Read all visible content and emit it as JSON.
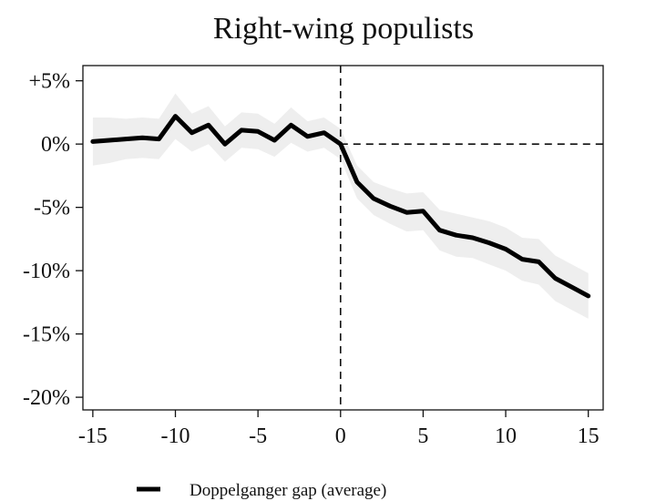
{
  "chart_data": {
    "type": "line",
    "title": "Right-wing populists",
    "xlabel": "",
    "ylabel": "",
    "xlim": [
      -15.6,
      15.9
    ],
    "ylim": [
      -21.0,
      6.2
    ],
    "x_ticks": [
      -15,
      -10,
      -5,
      0,
      5,
      10,
      15
    ],
    "x_tick_labels": [
      "-15",
      "-10",
      "-5",
      "0",
      "5",
      "10",
      "15"
    ],
    "y_ticks": [
      5,
      0,
      -5,
      -10,
      -15,
      -20
    ],
    "y_tick_labels": [
      "+5%",
      "0%",
      "-5%",
      "-10%",
      "-15%",
      "-20%"
    ],
    "reference_lines": {
      "x": 0,
      "y": 0,
      "style": "dashed"
    },
    "grid": false,
    "legend_position": "bottom-center",
    "series": [
      {
        "name": "Doppelganger gap (average)",
        "color": "#000000",
        "x": [
          -15,
          -14,
          -13,
          -12,
          -11,
          -10,
          -9,
          -8,
          -7,
          -6,
          -5,
          -4,
          -3,
          -2,
          -1,
          0,
          1,
          2,
          3,
          4,
          5,
          6,
          7,
          8,
          9,
          10,
          11,
          12,
          13,
          14,
          15
        ],
        "y": [
          0.2,
          0.3,
          0.4,
          0.5,
          0.4,
          2.2,
          0.9,
          1.5,
          0.0,
          1.1,
          1.0,
          0.3,
          1.5,
          0.6,
          0.9,
          0.0,
          -3.0,
          -4.3,
          -4.9,
          -5.4,
          -5.3,
          -6.8,
          -7.2,
          -7.4,
          -7.8,
          -8.3,
          -9.1,
          -9.3,
          -10.6,
          -11.3,
          -12.0
        ],
        "ci_lower": [
          -1.7,
          -1.5,
          -1.2,
          -1.1,
          -1.2,
          0.4,
          -0.6,
          0.0,
          -1.4,
          -0.3,
          -0.4,
          -1.0,
          0.1,
          -0.6,
          -0.3,
          -1.2,
          -4.3,
          -5.6,
          -6.3,
          -6.9,
          -6.8,
          -8.4,
          -8.9,
          -9.0,
          -9.5,
          -10.0,
          -10.8,
          -11.1,
          -12.4,
          -13.1,
          -13.8
        ],
        "ci_upper": [
          2.1,
          2.1,
          2.0,
          2.1,
          2.0,
          4.0,
          2.4,
          3.0,
          1.4,
          2.5,
          2.4,
          1.6,
          2.9,
          1.8,
          2.1,
          1.2,
          -1.7,
          -3.0,
          -3.5,
          -3.9,
          -3.8,
          -5.2,
          -5.5,
          -5.8,
          -6.1,
          -6.6,
          -7.4,
          -7.5,
          -8.8,
          -9.5,
          -10.2
        ],
        "ci_color": "#eeeeee"
      }
    ]
  }
}
